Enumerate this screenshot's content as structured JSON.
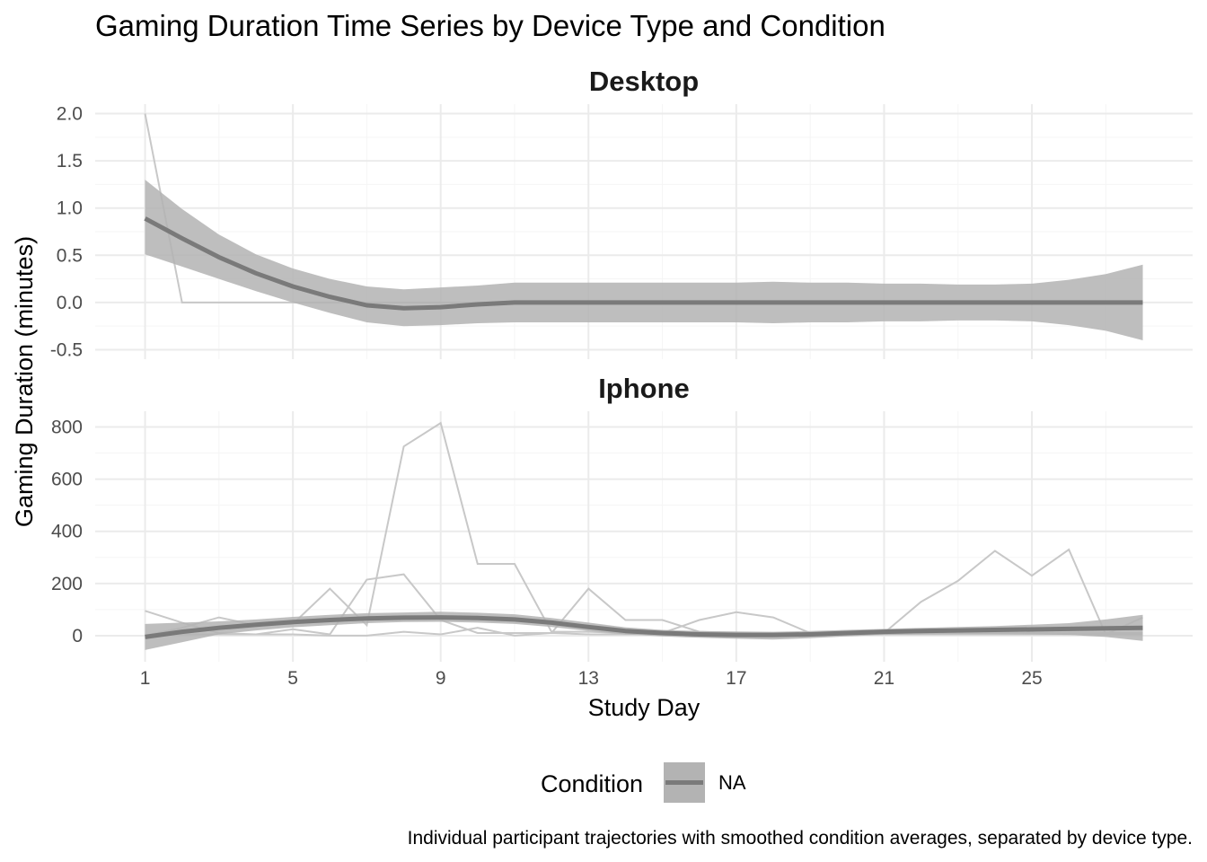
{
  "chart_data": {
    "type": "line",
    "title": "Gaming Duration Time Series by Device Type and Condition",
    "xlabel": "Study Day",
    "ylabel": "Gaming Duration (minutes)",
    "caption": "Individual participant trajectories with smoothed condition averages, separated by device type.",
    "x_ticks": [
      1,
      5,
      9,
      13,
      17,
      21,
      25
    ],
    "xlim": [
      -0.35,
      29.35
    ],
    "grid": true,
    "legend": {
      "title": "Condition",
      "position": "bottom",
      "entries": [
        "NA"
      ]
    },
    "colors": {
      "participant_line": "#c8c8c8",
      "smooth_line": "#7a7a7a",
      "ribbon": "#b3b3b3",
      "grid_major": "#ebebeb",
      "grid_minor": "#f5f5f5"
    },
    "panels": [
      {
        "name": "Desktop",
        "ylim": [
          -0.6,
          2.1
        ],
        "y_ticks": [
          -0.5,
          0.0,
          0.5,
          1.0,
          1.5,
          2.0
        ],
        "y_tick_labels": [
          "-0.5",
          "0.0",
          "0.5",
          "1.0",
          "1.5",
          "2.0"
        ],
        "participants": [
          {
            "x": [
              1,
              2,
              3,
              4,
              5,
              6,
              7,
              8,
              9,
              10,
              11,
              12,
              13,
              14,
              15,
              16,
              17,
              18,
              19,
              20,
              21,
              22,
              23,
              24,
              25,
              26,
              27,
              28
            ],
            "y": [
              2.0,
              0,
              0,
              0,
              0,
              0,
              0,
              0,
              0,
              0,
              0,
              0,
              0,
              0,
              0,
              0,
              0,
              0,
              0,
              0,
              0,
              0,
              0,
              0,
              0,
              0,
              0,
              0
            ]
          }
        ],
        "smooth": {
          "x": [
            1,
            2,
            3,
            4,
            5,
            6,
            7,
            8,
            9,
            10,
            11,
            12,
            13,
            14,
            15,
            16,
            17,
            18,
            19,
            20,
            21,
            22,
            23,
            24,
            25,
            26,
            27,
            28
          ],
          "y": [
            0.89,
            0.68,
            0.48,
            0.31,
            0.17,
            0.06,
            -0.03,
            -0.06,
            -0.05,
            -0.02,
            0,
            0,
            0,
            0,
            0,
            0,
            0,
            0,
            0,
            0,
            0,
            0,
            0,
            0,
            0,
            0,
            0,
            0
          ],
          "lower": [
            0.51,
            0.38,
            0.25,
            0.12,
            0.0,
            -0.11,
            -0.21,
            -0.25,
            -0.24,
            -0.22,
            -0.21,
            -0.21,
            -0.21,
            -0.21,
            -0.21,
            -0.21,
            -0.21,
            -0.22,
            -0.21,
            -0.21,
            -0.2,
            -0.2,
            -0.19,
            -0.19,
            -0.2,
            -0.24,
            -0.3,
            -0.4
          ],
          "upper": [
            1.3,
            0.99,
            0.72,
            0.51,
            0.36,
            0.25,
            0.17,
            0.14,
            0.16,
            0.18,
            0.21,
            0.21,
            0.21,
            0.21,
            0.21,
            0.21,
            0.21,
            0.22,
            0.21,
            0.21,
            0.2,
            0.2,
            0.19,
            0.19,
            0.2,
            0.24,
            0.3,
            0.4
          ]
        }
      },
      {
        "name": "Iphone",
        "ylim": [
          -100,
          860
        ],
        "y_ticks": [
          0,
          200,
          400,
          600,
          800
        ],
        "y_tick_labels": [
          "0",
          "200",
          "400",
          "600",
          "800"
        ],
        "participants": [
          {
            "x": [
              1,
              2,
              3,
              4,
              5,
              6,
              7,
              8,
              9,
              10,
              11,
              12,
              13,
              14,
              15,
              16,
              17,
              18,
              19,
              20,
              21,
              22,
              23,
              24,
              25,
              26,
              27,
              28
            ],
            "y": [
              95,
              50,
              10,
              5,
              25,
              5,
              215,
              235,
              60,
              10,
              10,
              10,
              180,
              60,
              60,
              15,
              10,
              5,
              10,
              10,
              10,
              130,
              210,
              325,
              230,
              330,
              5,
              70
            ]
          },
          {
            "x": [
              1,
              2,
              3,
              4,
              5,
              6,
              7,
              8,
              9,
              10,
              11,
              12,
              13,
              14,
              15,
              16,
              17,
              18,
              19,
              20,
              21,
              22,
              23,
              24,
              25,
              26,
              27,
              28
            ],
            "y": [
              0,
              30,
              70,
              40,
              45,
              180,
              40,
              725,
              815,
              275,
              275,
              15,
              15,
              10,
              10,
              60,
              90,
              70,
              10,
              10,
              10,
              10,
              10,
              10,
              10,
              10,
              10,
              10
            ]
          },
          {
            "x": [
              1,
              2,
              3,
              4,
              5,
              6,
              7,
              8,
              9,
              10,
              11,
              12,
              13,
              14,
              15,
              16,
              17,
              18,
              19,
              20,
              21,
              22,
              23,
              24,
              25,
              26,
              27,
              28
            ],
            "y": [
              0,
              5,
              5,
              5,
              5,
              0,
              0,
              15,
              5,
              30,
              0,
              10,
              5,
              5,
              5,
              5,
              5,
              0,
              5,
              5,
              5,
              5,
              5,
              5,
              5,
              5,
              5,
              5
            ]
          }
        ],
        "smooth": {
          "x": [
            1,
            2,
            3,
            4,
            5,
            6,
            7,
            8,
            9,
            10,
            11,
            12,
            13,
            14,
            15,
            16,
            17,
            18,
            19,
            20,
            21,
            22,
            23,
            24,
            25,
            26,
            27,
            28
          ],
          "y": [
            -5,
            15,
            30,
            42,
            52,
            60,
            66,
            69,
            70,
            68,
            62,
            50,
            33,
            18,
            10,
            5,
            3,
            3,
            5,
            10,
            15,
            18,
            20,
            22,
            24,
            26,
            28,
            30
          ],
          "lower": [
            -55,
            -25,
            5,
            20,
            32,
            40,
            48,
            52,
            53,
            50,
            45,
            33,
            18,
            5,
            -3,
            -8,
            -12,
            -15,
            -10,
            -3,
            3,
            5,
            6,
            6,
            5,
            3,
            -5,
            -20
          ],
          "upper": [
            45,
            50,
            55,
            62,
            72,
            80,
            86,
            89,
            92,
            88,
            82,
            68,
            50,
            32,
            22,
            18,
            16,
            15,
            18,
            22,
            26,
            30,
            33,
            37,
            42,
            48,
            62,
            80
          ]
        }
      }
    ]
  }
}
